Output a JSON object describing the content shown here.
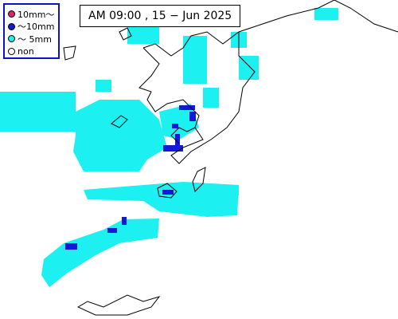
{
  "header": {
    "timestamp": "AM 09:00 , 15 − Jun 2025"
  },
  "legend": {
    "items": [
      {
        "label": "10mm～",
        "color": "#e8206c"
      },
      {
        "label": "～10mm",
        "color": "#1418d8"
      },
      {
        "label": "～ 5mm",
        "color": "#1cf0f0"
      },
      {
        "label": "non",
        "color": "#ffffff"
      }
    ]
  }
}
